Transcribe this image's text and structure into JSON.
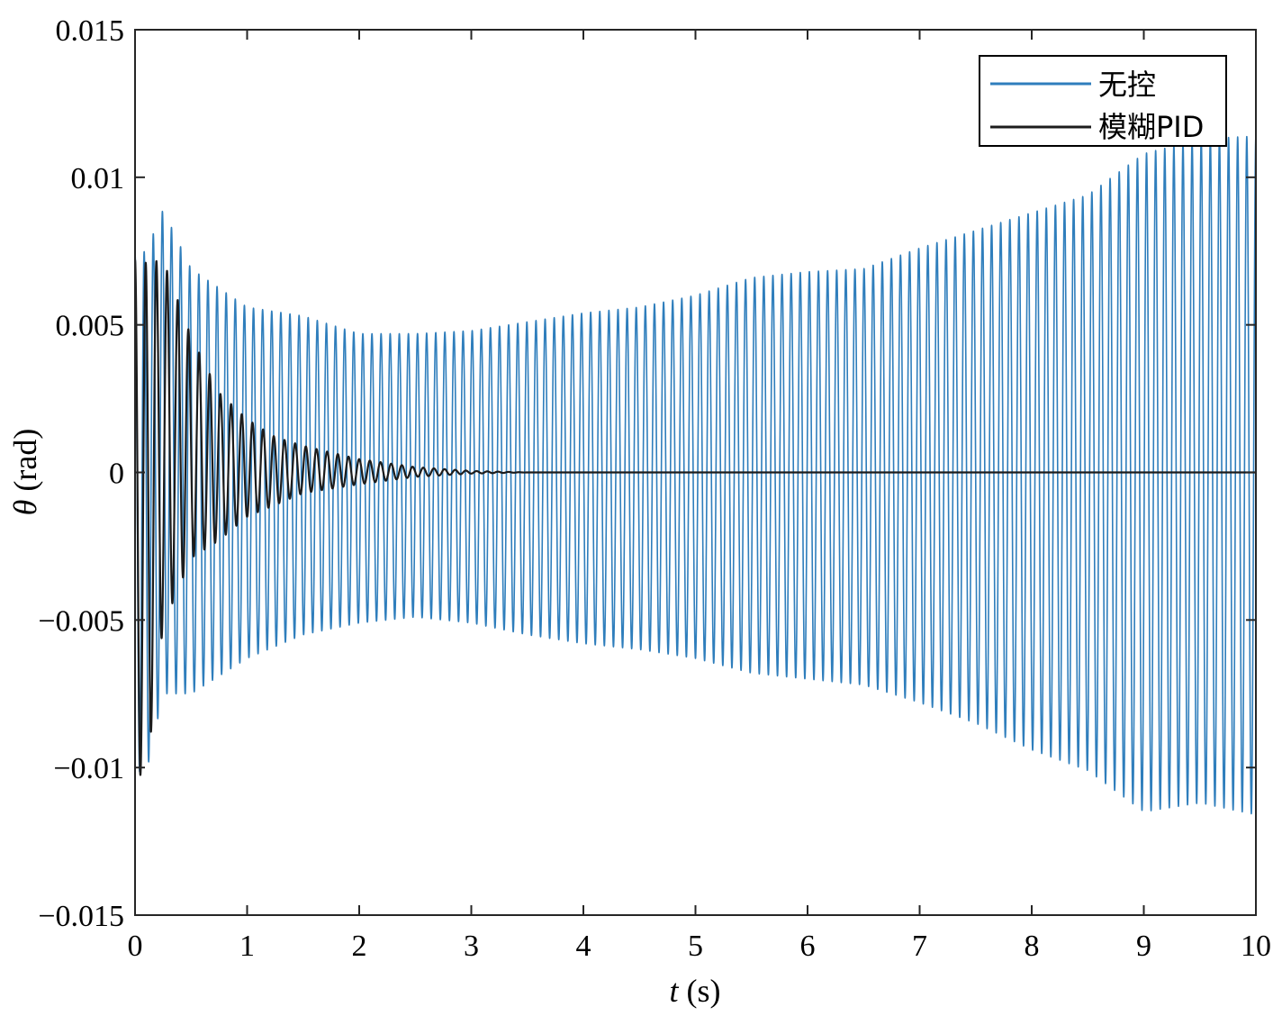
{
  "chart_data": {
    "type": "line",
    "xlabel_var": "t",
    "xlabel_unit": " (s)",
    "ylabel_var": "θ",
    "ylabel_unit": " (rad)",
    "xlim": [
      0,
      10
    ],
    "ylim": [
      -0.015,
      0.015
    ],
    "xticks": [
      0,
      1,
      2,
      3,
      4,
      5,
      6,
      7,
      8,
      9,
      10
    ],
    "xtick_labels": [
      "0",
      "1",
      "2",
      "3",
      "4",
      "5",
      "6",
      "7",
      "8",
      "9",
      "10"
    ],
    "yticks": [
      -0.015,
      -0.01,
      -0.005,
      0,
      0.005,
      0.01,
      0.015
    ],
    "ytick_labels": [
      "−0.015",
      "−0.01",
      "−0.005",
      "0",
      "0.005",
      "0.01",
      "0.015"
    ],
    "grid": false,
    "legend_position": "top-right",
    "series": [
      {
        "name": "无控",
        "color": "#2f7ebc",
        "style": "oscillation",
        "frequency_hz": 12.3,
        "envelope": {
          "t": [
            0,
            0.1,
            0.25,
            0.5,
            1,
            1.5,
            2,
            2.5,
            3,
            3.5,
            4,
            4.5,
            5,
            5.5,
            6,
            6.5,
            7,
            7.5,
            8,
            8.5,
            9,
            9.5,
            10
          ],
          "upper": [
            0.0074,
            0.0075,
            0.0089,
            0.0069,
            0.0056,
            0.0053,
            0.0047,
            0.0047,
            0.0048,
            0.0051,
            0.0054,
            0.0056,
            0.006,
            0.0066,
            0.0068,
            0.0069,
            0.0076,
            0.0082,
            0.0088,
            0.0094,
            0.0108,
            0.0113,
            0.0114
          ],
          "lower": [
            -0.0101,
            -0.0102,
            -0.0075,
            -0.0075,
            -0.0063,
            -0.0055,
            -0.0051,
            -0.0049,
            -0.0051,
            -0.0055,
            -0.0058,
            -0.006,
            -0.0063,
            -0.0068,
            -0.007,
            -0.0072,
            -0.0078,
            -0.0085,
            -0.0094,
            -0.0101,
            -0.0115,
            -0.0112,
            -0.0116
          ]
        }
      },
      {
        "name": "模糊PID",
        "color": "#1c1c1c",
        "style": "damped",
        "frequency_hz": 10.5,
        "envelope": {
          "t": [
            0,
            0.1,
            0.25,
            0.5,
            0.75,
            1,
            1.25,
            1.5,
            2,
            2.5,
            3,
            3.5,
            10
          ],
          "upper": [
            0.0072,
            0.0071,
            0.0072,
            0.0046,
            0.0027,
            0.0018,
            0.0012,
            0.0009,
            0.00045,
            0.00018,
            5e-05,
            0,
            0
          ],
          "lower": [
            -0.0103,
            -0.0102,
            -0.0052,
            -0.0029,
            -0.0023,
            -0.0015,
            -0.0011,
            -0.0007,
            -0.0004,
            -0.00015,
            -4e-05,
            0,
            0
          ]
        }
      }
    ]
  }
}
